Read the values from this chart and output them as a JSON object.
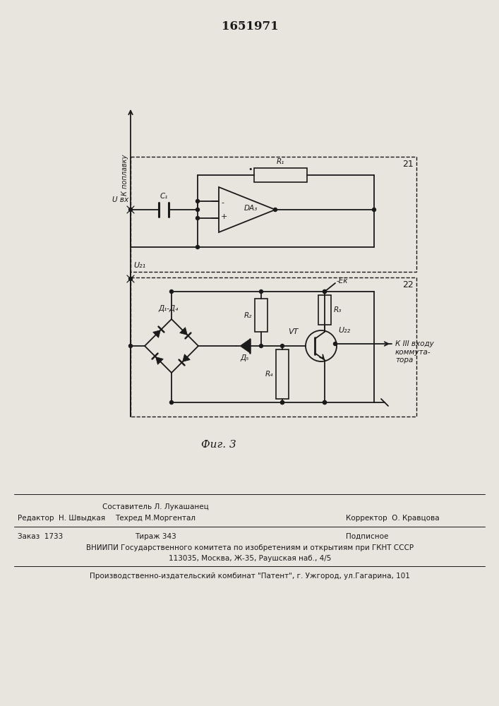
{
  "title": "1651971",
  "fig_label": "Фиг. 3",
  "block21_label": "21",
  "block22_label": "22",
  "bg_color": "#e8e4de",
  "line_color": "#1a1a1a",
  "footer_line1_left": "Редактор  Н. Швыдкая",
  "footer_line1_center1": "Составитель Л. Лукашанец",
  "footer_line1_center2": "Техред М.Моргентал",
  "footer_line1_right": "Корректор  О. Кравцова",
  "footer_line2a": "Заказ  1733",
  "footer_line2b": "Тираж 343",
  "footer_line2c": "Подписное",
  "footer_line3": "ВНИИПИ Государственного комитета по изобретениям и открытиям при ГКНТ СССР",
  "footer_line4": "113035, Москва, Ж-35, Раушская наб., 4/5",
  "footer_line5": "Производственно-издательский комбинат \"Патент\", г. Ужгород, ул.Гагарина, 101",
  "label_k_poplavku": "К поплавку",
  "label_Uvx": "U вх",
  "label_C1": "C₁",
  "label_R1": "R₁",
  "label_DA3": "DA₃",
  "label_U21": "U₂₁",
  "label_D1D4": "Д₁-Д₄",
  "label_D5": "Д₅",
  "label_R2": "R₂",
  "label_R3": "R₃",
  "label_R4": "R₄",
  "label_VT": "VT",
  "label_Ek": "-Eк",
  "label_U22": "U₂₂",
  "label_k_kommutator": "К III входу\nкоммута-\nтора"
}
